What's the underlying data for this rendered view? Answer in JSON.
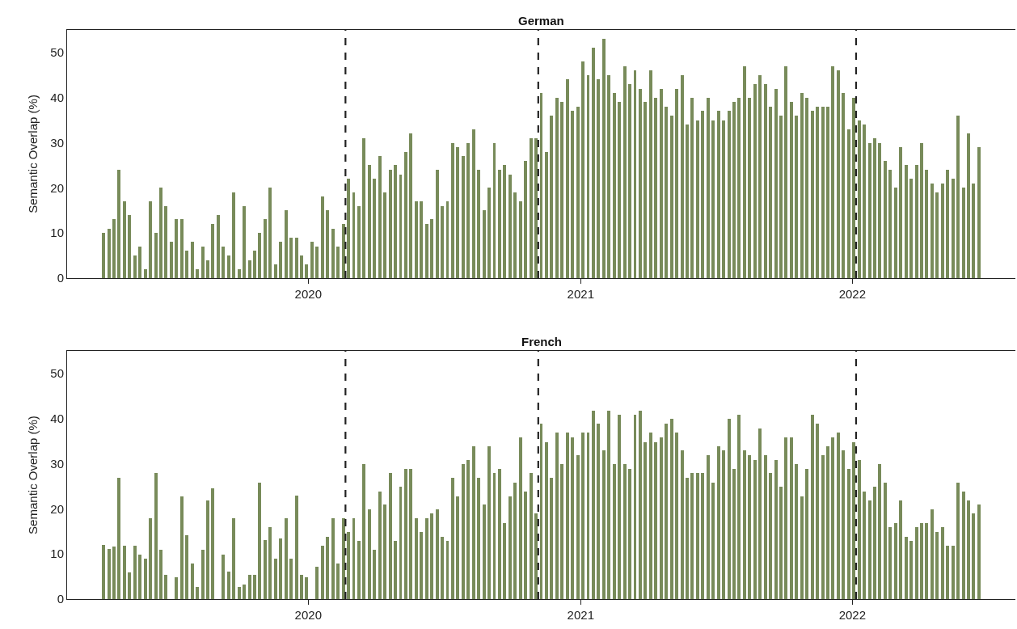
{
  "chart_data": [
    {
      "type": "bar",
      "title": "German",
      "ylabel": "Semantic Overlap (%)",
      "color": "#788b5a",
      "x": [
        "2019-04-01",
        "2019-04-08",
        "2019-04-15",
        "2019-04-22",
        "2019-04-29",
        "2019-05-06",
        "2019-05-13",
        "2019-05-20",
        "2019-05-27",
        "2019-06-03",
        "2019-06-10",
        "2019-06-17",
        "2019-06-24",
        "2019-07-01",
        "2019-07-08",
        "2019-07-15",
        "2019-07-22",
        "2019-07-29",
        "2019-08-05",
        "2019-08-12",
        "2019-08-19",
        "2019-08-26",
        "2019-09-02",
        "2019-09-09",
        "2019-09-16",
        "2019-09-23",
        "2019-09-30",
        "2019-10-07",
        "2019-10-14",
        "2019-10-21",
        "2019-10-28",
        "2019-11-04",
        "2019-11-11",
        "2019-11-18",
        "2019-11-25",
        "2019-12-02",
        "2019-12-09",
        "2019-12-16",
        "2019-12-23",
        "2019-12-30",
        "2020-01-06",
        "2020-01-13",
        "2020-01-20",
        "2020-01-27",
        "2020-02-03",
        "2020-02-10",
        "2020-02-17",
        "2020-02-24",
        "2020-03-02",
        "2020-03-09",
        "2020-03-16",
        "2020-03-23",
        "2020-03-30",
        "2020-04-06",
        "2020-04-13",
        "2020-04-20",
        "2020-04-27",
        "2020-05-04",
        "2020-05-11",
        "2020-05-18",
        "2020-05-25",
        "2020-06-01",
        "2020-06-08",
        "2020-06-15",
        "2020-06-22",
        "2020-06-29",
        "2020-07-06",
        "2020-07-13",
        "2020-07-20",
        "2020-07-27",
        "2020-08-03",
        "2020-08-10",
        "2020-08-17",
        "2020-08-24",
        "2020-08-31",
        "2020-09-07",
        "2020-09-14",
        "2020-09-21",
        "2020-09-28",
        "2020-10-05",
        "2020-10-12",
        "2020-10-19",
        "2020-10-26",
        "2020-11-02",
        "2020-11-09",
        "2020-11-16",
        "2020-11-23",
        "2020-11-30",
        "2020-12-07",
        "2020-12-14",
        "2020-12-21",
        "2020-12-28",
        "2021-01-04",
        "2021-01-11",
        "2021-01-18",
        "2021-01-25",
        "2021-02-01",
        "2021-02-08",
        "2021-02-15",
        "2021-02-22",
        "2021-03-01",
        "2021-03-08",
        "2021-03-15",
        "2021-03-22",
        "2021-03-29",
        "2021-04-05",
        "2021-04-12",
        "2021-04-19",
        "2021-04-26",
        "2021-05-03",
        "2021-05-10",
        "2021-05-17",
        "2021-05-24",
        "2021-05-31",
        "2021-06-07",
        "2021-06-14",
        "2021-06-21",
        "2021-06-28",
        "2021-07-05",
        "2021-07-12",
        "2021-07-19",
        "2021-07-26",
        "2021-08-02",
        "2021-08-09",
        "2021-08-16",
        "2021-08-23",
        "2021-08-30",
        "2021-09-06",
        "2021-09-13",
        "2021-09-20",
        "2021-09-27",
        "2021-10-04",
        "2021-10-11",
        "2021-10-18",
        "2021-10-25",
        "2021-11-01",
        "2021-11-08",
        "2021-11-15",
        "2021-11-22",
        "2021-11-29",
        "2021-12-06",
        "2021-12-13",
        "2021-12-20",
        "2021-12-27",
        "2022-01-03",
        "2022-01-10",
        "2022-01-17",
        "2022-01-24",
        "2022-01-31",
        "2022-02-07",
        "2022-02-14",
        "2022-02-21",
        "2022-02-28",
        "2022-03-07",
        "2022-03-14",
        "2022-03-21",
        "2022-03-28",
        "2022-04-04",
        "2022-04-11",
        "2022-04-18",
        "2022-04-25",
        "2022-05-02",
        "2022-05-09",
        "2022-05-16",
        "2022-05-23",
        "2022-05-30",
        "2022-06-06",
        "2022-06-13",
        "2022-06-20"
      ],
      "values": [
        10,
        11,
        13,
        24,
        17,
        14,
        5,
        7,
        2,
        17,
        10,
        20,
        16,
        8,
        13,
        13,
        6,
        8,
        2,
        7,
        4,
        12,
        14,
        7,
        5,
        19,
        2,
        16,
        4,
        6,
        10,
        13,
        20,
        3,
        8,
        15,
        9,
        9,
        5,
        3,
        8,
        7,
        18,
        15,
        11,
        7,
        12,
        22,
        19,
        16,
        31,
        25,
        22,
        27,
        19,
        24,
        25,
        23,
        28,
        32,
        17,
        17,
        12,
        13,
        24,
        16,
        17,
        30,
        29,
        27,
        30,
        33,
        24,
        15,
        20,
        30,
        24,
        25,
        23,
        19,
        17,
        26,
        31,
        31,
        41,
        28,
        36,
        40,
        39,
        44,
        37,
        38,
        48,
        45,
        51,
        44,
        53,
        45,
        41,
        39,
        47,
        43,
        46,
        42,
        39,
        46,
        40,
        42,
        38,
        36,
        42,
        45,
        34,
        40,
        35,
        37,
        40,
        35,
        37,
        35,
        37,
        39,
        40,
        47,
        40,
        43,
        45,
        43,
        38,
        42,
        36,
        47,
        39,
        36,
        41,
        40,
        37,
        38,
        38,
        38,
        47,
        46,
        41,
        33,
        40,
        35,
        34,
        30,
        31,
        30,
        26,
        24,
        20,
        29,
        25,
        22,
        25,
        30,
        24,
        21,
        19,
        21,
        24,
        22,
        36,
        20,
        32,
        21,
        29
      ],
      "xlim": [
        "2019-02-11",
        "2022-08-08"
      ],
      "xticks": [
        "2020",
        "2021",
        "2022"
      ],
      "ylim": [
        0,
        55
      ],
      "yticks": [
        0,
        10,
        20,
        30,
        40,
        50
      ],
      "ref_lines": [
        {
          "axis": "x",
          "value": "2020-02-20",
          "color": "#222222",
          "line_style": "dashed"
        },
        {
          "axis": "x",
          "value": "2020-11-05",
          "color": "#222222",
          "line_style": "dashed"
        },
        {
          "axis": "x",
          "value": "2022-01-06",
          "color": "#222222",
          "line_style": "dashed"
        }
      ]
    },
    {
      "type": "bar",
      "title": "French",
      "ylabel": "Semantic Overlap (%)",
      "color": "#788b5a",
      "x": [
        "2019-04-01",
        "2019-04-08",
        "2019-04-15",
        "2019-04-22",
        "2019-04-29",
        "2019-05-06",
        "2019-05-13",
        "2019-05-20",
        "2019-05-27",
        "2019-06-03",
        "2019-06-10",
        "2019-06-17",
        "2019-06-24",
        "2019-07-01",
        "2019-07-08",
        "2019-07-15",
        "2019-07-22",
        "2019-07-29",
        "2019-08-05",
        "2019-08-12",
        "2019-08-19",
        "2019-08-26",
        "2019-09-02",
        "2019-09-09",
        "2019-09-16",
        "2019-09-23",
        "2019-09-30",
        "2019-10-07",
        "2019-10-14",
        "2019-10-21",
        "2019-10-28",
        "2019-11-04",
        "2019-11-11",
        "2019-11-18",
        "2019-11-25",
        "2019-12-02",
        "2019-12-09",
        "2019-12-16",
        "2019-12-23",
        "2019-12-30",
        "2020-01-06",
        "2020-01-13",
        "2020-01-20",
        "2020-01-27",
        "2020-02-03",
        "2020-02-10",
        "2020-02-17",
        "2020-02-24",
        "2020-03-02",
        "2020-03-09",
        "2020-03-16",
        "2020-03-23",
        "2020-03-30",
        "2020-04-06",
        "2020-04-13",
        "2020-04-20",
        "2020-04-27",
        "2020-05-04",
        "2020-05-11",
        "2020-05-18",
        "2020-05-25",
        "2020-06-01",
        "2020-06-08",
        "2020-06-15",
        "2020-06-22",
        "2020-06-29",
        "2020-07-06",
        "2020-07-13",
        "2020-07-20",
        "2020-07-27",
        "2020-08-03",
        "2020-08-10",
        "2020-08-17",
        "2020-08-24",
        "2020-08-31",
        "2020-09-07",
        "2020-09-14",
        "2020-09-21",
        "2020-09-28",
        "2020-10-05",
        "2020-10-12",
        "2020-10-19",
        "2020-10-26",
        "2020-11-02",
        "2020-11-09",
        "2020-11-16",
        "2020-11-23",
        "2020-11-30",
        "2020-12-07",
        "2020-12-14",
        "2020-12-21",
        "2020-12-28",
        "2021-01-04",
        "2021-01-11",
        "2021-01-18",
        "2021-01-25",
        "2021-02-01",
        "2021-02-08",
        "2021-02-15",
        "2021-02-22",
        "2021-03-01",
        "2021-03-08",
        "2021-03-15",
        "2021-03-22",
        "2021-03-29",
        "2021-04-05",
        "2021-04-12",
        "2021-04-19",
        "2021-04-26",
        "2021-05-03",
        "2021-05-10",
        "2021-05-17",
        "2021-05-24",
        "2021-05-31",
        "2021-06-07",
        "2021-06-14",
        "2021-06-21",
        "2021-06-28",
        "2021-07-05",
        "2021-07-12",
        "2021-07-19",
        "2021-07-26",
        "2021-08-02",
        "2021-08-09",
        "2021-08-16",
        "2021-08-23",
        "2021-08-30",
        "2021-09-06",
        "2021-09-13",
        "2021-09-20",
        "2021-09-27",
        "2021-10-04",
        "2021-10-11",
        "2021-10-18",
        "2021-10-25",
        "2021-11-01",
        "2021-11-08",
        "2021-11-15",
        "2021-11-22",
        "2021-11-29",
        "2021-12-06",
        "2021-12-13",
        "2021-12-20",
        "2021-12-27",
        "2022-01-03",
        "2022-01-10",
        "2022-01-17",
        "2022-01-24",
        "2022-01-31",
        "2022-02-07",
        "2022-02-14",
        "2022-02-21",
        "2022-02-28",
        "2022-03-07",
        "2022-03-14",
        "2022-03-21",
        "2022-03-28",
        "2022-04-04",
        "2022-04-11",
        "2022-04-18",
        "2022-04-25",
        "2022-05-02",
        "2022-05-09",
        "2022-05-16",
        "2022-05-23",
        "2022-05-30",
        "2022-06-06",
        "2022-06-13",
        "2022-06-20"
      ],
      "values": [
        12,
        11.1,
        11.6,
        26.9,
        11.9,
        5.9,
        11.9,
        9.9,
        8.9,
        17.9,
        27.9,
        10.9,
        5.3,
        null,
        4.9,
        22.8,
        14.1,
        7.9,
        2.7,
        10.9,
        21.9,
        24.6,
        null,
        9.9,
        6.1,
        17.9,
        2.6,
        3.2,
        5.4,
        5.3,
        25.8,
        13,
        15.9,
        8.9,
        13.4,
        17.9,
        8.9,
        23,
        5.3,
        4.8,
        null,
        7.1,
        11.9,
        13.8,
        17.9,
        7.9,
        17.9,
        14.9,
        17.9,
        12.9,
        29.9,
        19.8,
        10.9,
        23.9,
        20.9,
        27.9,
        12.9,
        24.9,
        28.8,
        28.8,
        17.9,
        14.9,
        17.9,
        18.9,
        19.8,
        13.8,
        12.9,
        26.9,
        22.8,
        29.9,
        30.9,
        33.9,
        26.9,
        20.9,
        33.9,
        27.9,
        28.8,
        16.8,
        22.8,
        25.8,
        35.9,
        23.9,
        27.9,
        18.9,
        38.8,
        34.8,
        26.9,
        36.9,
        29.9,
        36.9,
        35.9,
        31.8,
        36.9,
        36.9,
        41.8,
        38.8,
        32.9,
        41.8,
        29.9,
        40.8,
        29.9,
        28.8,
        40.8,
        41.8,
        34.8,
        36.9,
        34.8,
        35.9,
        38.8,
        39.9,
        36.9,
        32.9,
        26.9,
        27.9,
        27.9,
        27.9,
        31.8,
        25.8,
        33.9,
        32.9,
        39.9,
        28.8,
        40.8,
        32.9,
        31.8,
        30.9,
        37.8,
        31.8,
        27.9,
        30.9,
        24.9,
        35.9,
        35.9,
        29.9,
        22.8,
        28.8,
        40.8,
        38.8,
        31.8,
        33.9,
        35.9,
        36.9,
        32.9,
        28.8,
        34.8,
        30.9,
        23.9,
        21.9,
        24.9,
        29.9,
        25.8,
        15.9,
        16.8,
        21.9,
        13.8,
        12.9,
        15.9,
        16.8,
        16.8,
        19.8,
        14.9,
        15.9,
        11.9,
        11.9,
        25.8,
        23.9,
        21.9,
        18.9,
        20.9
      ],
      "xlim": [
        "2019-02-11",
        "2022-08-08"
      ],
      "xticks": [
        "2020",
        "2021",
        "2022"
      ],
      "ylim": [
        0,
        55
      ],
      "yticks": [
        0,
        10,
        20,
        30,
        40,
        50
      ],
      "ref_lines": [
        {
          "axis": "x",
          "value": "2020-02-20",
          "color": "#222222",
          "line_style": "dashed"
        },
        {
          "axis": "x",
          "value": "2020-11-05",
          "color": "#222222",
          "line_style": "dashed"
        },
        {
          "axis": "x",
          "value": "2022-01-06",
          "color": "#222222",
          "line_style": "dashed"
        }
      ]
    }
  ]
}
